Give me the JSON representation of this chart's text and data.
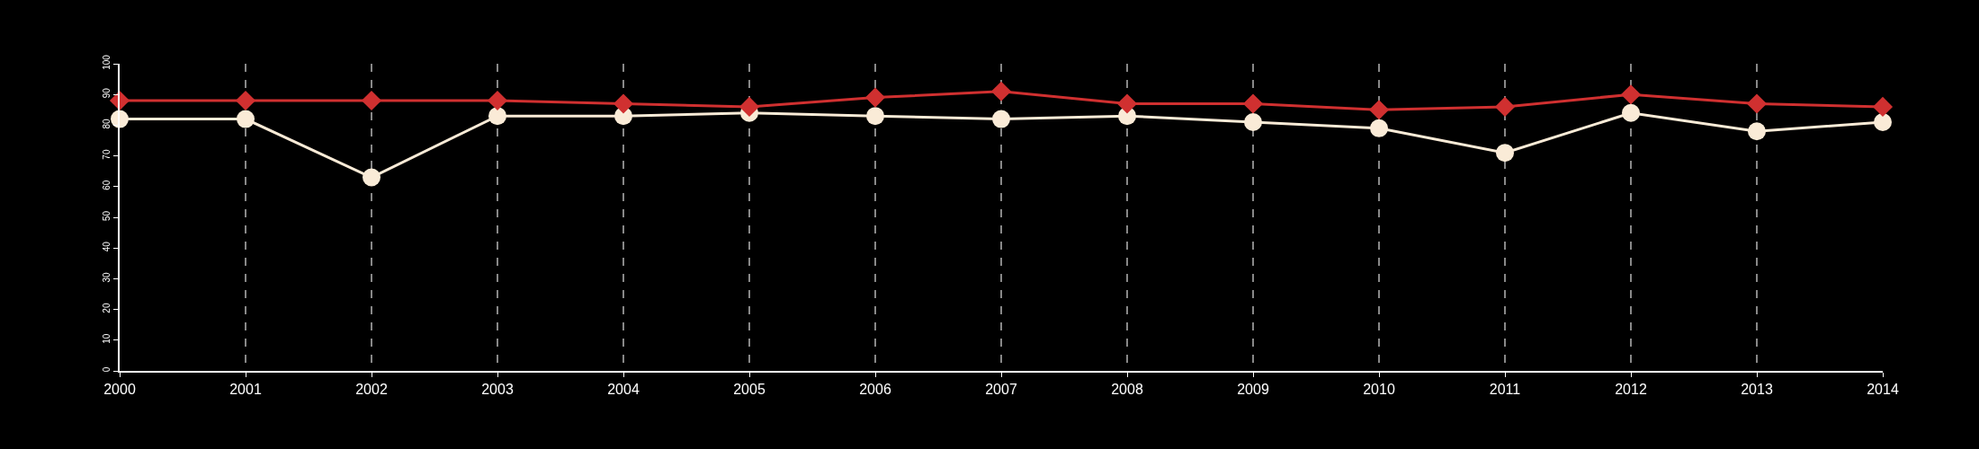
{
  "chart_data": {
    "type": "line",
    "x": [
      2000,
      2001,
      2002,
      2003,
      2004,
      2005,
      2006,
      2007,
      2008,
      2009,
      2010,
      2011,
      2012,
      2013,
      2014
    ],
    "series": [
      {
        "color": "#faebd7",
        "marker": "circle",
        "values": [
          82,
          82,
          63,
          83,
          83,
          84,
          83,
          82,
          83,
          81,
          79,
          71,
          84,
          78,
          81
        ]
      },
      {
        "color": "#d03030",
        "marker": "diamond",
        "values": [
          88,
          88,
          88,
          88,
          87,
          86,
          89,
          91,
          87,
          87,
          85,
          86,
          90,
          87,
          86
        ]
      }
    ],
    "xlim": [
      2000,
      2014
    ],
    "xticks": [
      2000,
      2001,
      2002,
      2003,
      2004,
      2005,
      2006,
      2007,
      2008,
      2009,
      2010,
      2011,
      2012,
      2013,
      2014
    ],
    "ylim": [
      0,
      100
    ],
    "yticks": [
      0,
      10,
      20,
      30,
      40,
      50,
      60,
      70,
      80,
      90,
      100
    ],
    "grid": "x",
    "legend": false
  }
}
